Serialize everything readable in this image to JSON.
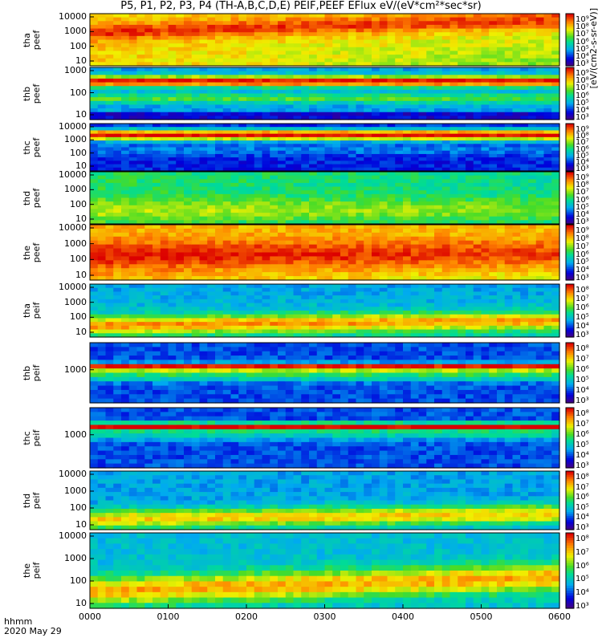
{
  "title": "P5, P1, P2, P3, P4 (TH-A,B,C,D,E) PEIF,PEEF EFlux eV/(eV*cm²*sec*sr)",
  "x_axis": {
    "ticks": [
      "0000",
      "0100",
      "0200",
      "0300",
      "0400",
      "0500",
      "0600"
    ],
    "label_line1": "hhmm",
    "label_line2": "2020 May 29"
  },
  "colorbar_units": "[eV/(cm2-s-sr-eV)]",
  "chart_data": {
    "type": "heatmap",
    "panels": [
      {
        "id": "tha-peef",
        "probe": "tha",
        "product": "peef",
        "yticks": [
          "10000",
          "1000",
          "100",
          "10"
        ],
        "colorbar_ticks": [
          "10⁹",
          "10⁸",
          "10⁷",
          "10⁶",
          "10⁵",
          "10⁴",
          "10³"
        ],
        "profile": "tha_e"
      },
      {
        "id": "thb-peef",
        "probe": "thb",
        "product": "peef",
        "yticks": [
          "1000",
          "100",
          "10"
        ],
        "colorbar_ticks": [
          "10⁹",
          "10⁸",
          "10⁷",
          "10⁶",
          "10⁵",
          "10⁴",
          "10³"
        ],
        "profile": "thb_e"
      },
      {
        "id": "thc-peef",
        "probe": "thc",
        "product": "peef",
        "yticks": [
          "10000",
          "1000",
          "100",
          "10"
        ],
        "colorbar_ticks": [
          "10⁹",
          "10⁸",
          "10⁷",
          "10⁶",
          "10⁵",
          "10⁴",
          "10³"
        ],
        "profile": "thc_e"
      },
      {
        "id": "thd-peef",
        "probe": "thd",
        "product": "peef",
        "yticks": [
          "10000",
          "1000",
          "100",
          "10"
        ],
        "colorbar_ticks": [
          "10⁹",
          "10⁸",
          "10⁷",
          "10⁶",
          "10⁵",
          "10⁴",
          "10³"
        ],
        "profile": "thd_e"
      },
      {
        "id": "the-peef",
        "probe": "the",
        "product": "peef",
        "yticks": [
          "10000",
          "1000",
          "100",
          "10"
        ],
        "colorbar_ticks": [
          "10⁹",
          "10⁸",
          "10⁷",
          "10⁶",
          "10⁵",
          "10⁴",
          "10³"
        ],
        "profile": "the_e"
      },
      {
        "id": "tha-peif",
        "probe": "tha",
        "product": "peif",
        "yticks": [
          "10000",
          "1000",
          "100",
          "10"
        ],
        "colorbar_ticks": [
          "10⁸",
          "10⁷",
          "10⁶",
          "10⁵",
          "10⁴",
          "10³"
        ],
        "profile": "tha_i"
      },
      {
        "id": "thb-peif",
        "probe": "thb",
        "product": "peif",
        "yticks": [
          "1000"
        ],
        "colorbar_ticks": [
          "10⁸",
          "10⁷",
          "10⁶",
          "10⁵",
          "10⁴",
          "10³"
        ],
        "profile": "thb_i"
      },
      {
        "id": "thc-peif",
        "probe": "thc",
        "product": "peif",
        "yticks": [
          "1000"
        ],
        "colorbar_ticks": [
          "10⁸",
          "10⁷",
          "10⁶",
          "10⁵",
          "10⁴",
          "10³"
        ],
        "profile": "thc_i"
      },
      {
        "id": "thd-peif",
        "probe": "thd",
        "product": "peif",
        "yticks": [
          "10000",
          "1000",
          "100",
          "10"
        ],
        "colorbar_ticks": [
          "10⁸",
          "10⁷",
          "10⁶",
          "10⁵",
          "10⁴",
          "10³"
        ],
        "profile": "thd_i"
      },
      {
        "id": "the-peif",
        "probe": "the",
        "product": "peif",
        "yticks": [
          "10000",
          "1000",
          "100",
          "10"
        ],
        "colorbar_ticks": [
          "10⁸",
          "10⁷",
          "10⁶",
          "10⁵",
          "10⁴",
          "10³"
        ],
        "profile": "the_i"
      }
    ],
    "x_range": [
      "0000",
      "0600"
    ],
    "y_scale": "log",
    "colormap": "rainbow (purple-blue-cyan-green-yellow-red)",
    "grid": false
  }
}
